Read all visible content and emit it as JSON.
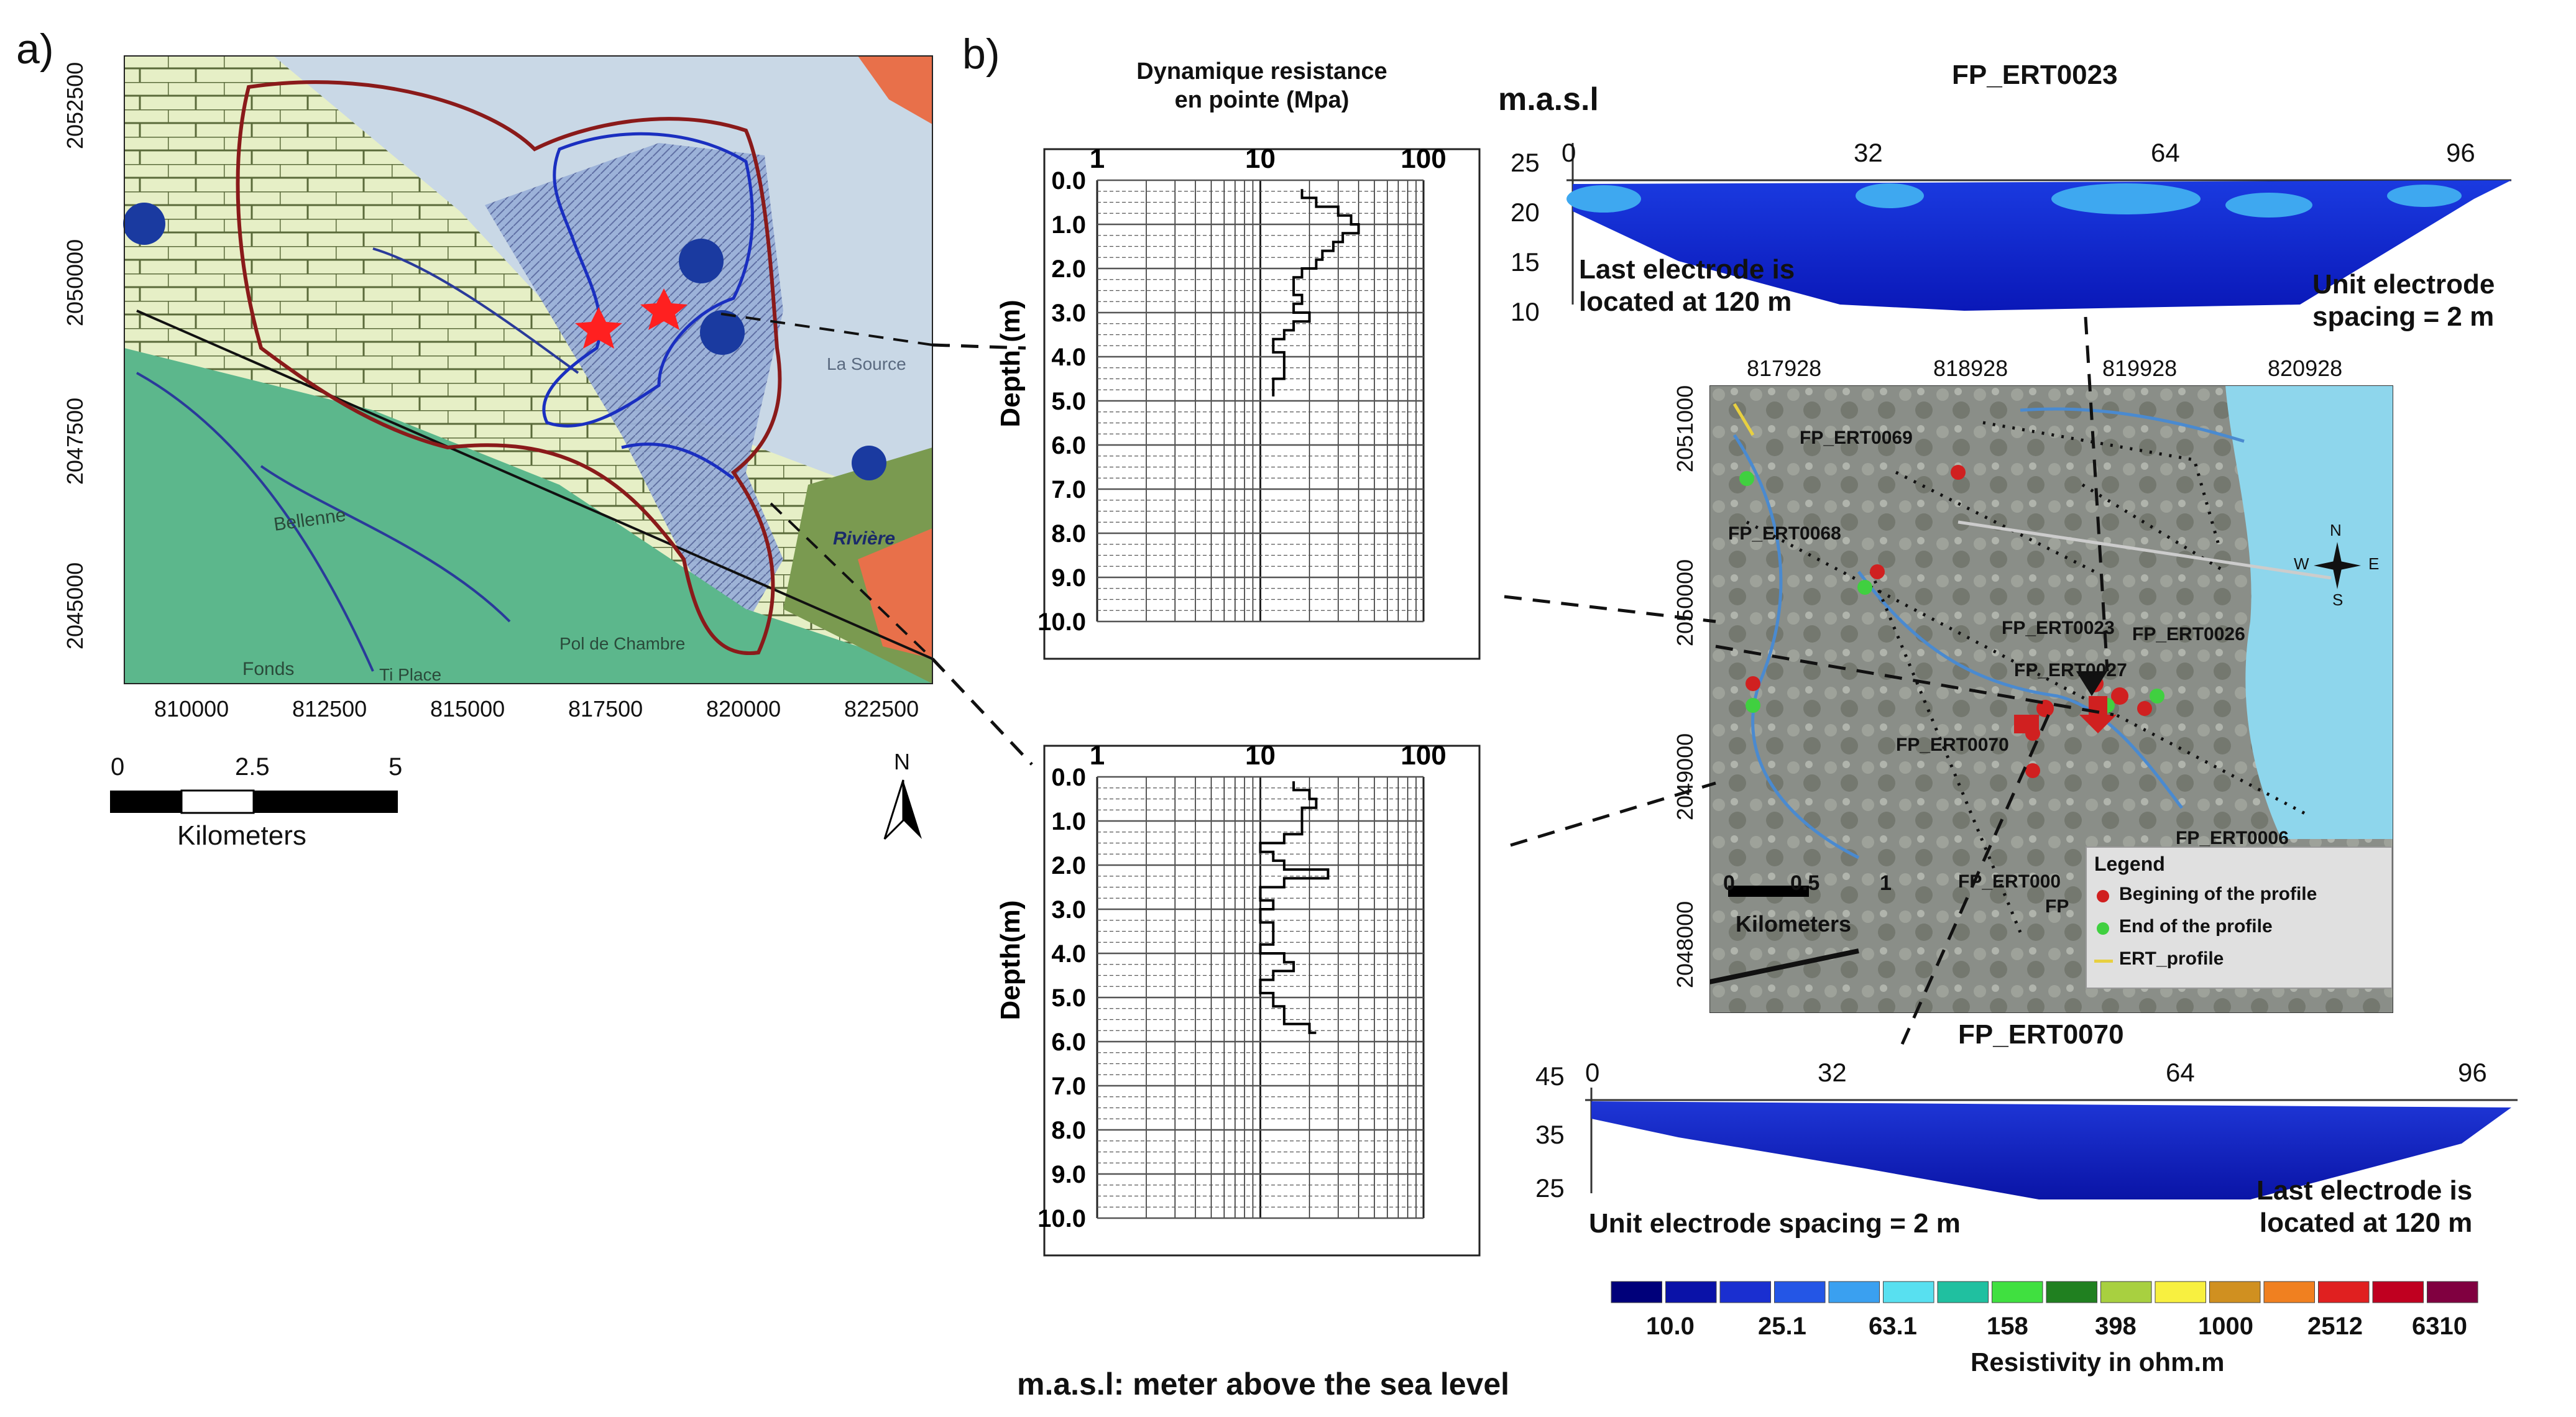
{
  "panel_a": {
    "label": "a)",
    "x_ticks": [
      "810000",
      "812500",
      "815000",
      "817500",
      "820000",
      "822500"
    ],
    "y_ticks": [
      "2052500",
      "2050000",
      "2047500",
      "2045000"
    ],
    "scale_bar": {
      "ticks": [
        "0",
        "2.5",
        "5"
      ],
      "unit": "Kilometers"
    },
    "north": "N",
    "map_words": [
      "Bellenne",
      "Fonds",
      "Pol de Chambre",
      "Ti Place",
      "La Source",
      "Rivière"
    ],
    "colors": {
      "limestone": "#e8f0c8",
      "sediment": "#b0c8dc",
      "volcanic": "#5bb58a",
      "basin_border": "#8a1a1a",
      "subbasin": "#1a2fc0",
      "marker": "#ff2020"
    }
  },
  "panel_b": {
    "label": "b)",
    "legend_masl": "m.a.s.l: meter above the sea level",
    "masl_label": "m.a.s.l",
    "penetrometer": {
      "title_line1": "Dynamique resistance",
      "title_line2": "en pointe (Mpa)",
      "x_ticks": [
        "1",
        "10",
        "100"
      ],
      "depth_ticks": [
        "0.0",
        "1.0",
        "2.0",
        "3.0",
        "4.0",
        "5.0",
        "6.0",
        "7.0",
        "8.0",
        "9.0",
        "10.0"
      ],
      "ylabel_top": "Depth (m)",
      "ylabel_bottom": "Depth(m)"
    },
    "ert_top": {
      "title": "FP_ERT0023",
      "x_ticks": [
        "0",
        "32",
        "64",
        "96"
      ],
      "y_ticks": [
        "25",
        "20",
        "15",
        "10"
      ],
      "note_left_1": "Last electrode is",
      "note_left_2": "located at 120 m",
      "note_right_1": "Unit electrode",
      "note_right_2": "spacing = 2 m"
    },
    "ert_bottom": {
      "title": "FP_ERT0070",
      "x_ticks": [
        "0",
        "32",
        "64",
        "96"
      ],
      "y_ticks": [
        "45",
        "35",
        "25"
      ],
      "note_left": "Unit electrode spacing = 2 m",
      "note_right_1": "Last electrode is",
      "note_right_2": "located at 120 m"
    },
    "site_map": {
      "x_ticks": [
        "817928",
        "818928",
        "819928",
        "820928"
      ],
      "y_ticks": [
        "2051000",
        "2050000",
        "2049000",
        "2048000"
      ],
      "profiles": [
        "FP_ERT0069",
        "FP_ERT0068",
        "FP_ERT0023",
        "FP_ERT0026",
        "FP_ERT0027",
        "FP_ERT0070",
        "FP_ERT0006",
        "FP_ERT000",
        "FP"
      ],
      "scale": {
        "ticks": [
          "0",
          "0.5",
          "1"
        ],
        "unit": "Kilometers"
      },
      "compass": {
        "n": "N",
        "s": "S",
        "e": "E",
        "w": "W"
      },
      "legend": {
        "title": "Legend",
        "items": [
          {
            "label": "Begining of the profile",
            "color": "#d02020"
          },
          {
            "label": "End of the profile",
            "color": "#40d040"
          },
          {
            "label": "ERT_profile",
            "color": "#e8d040"
          }
        ]
      }
    },
    "colorbar": {
      "title": "Resistivity in ohm.m",
      "tick_labels": [
        "10.0",
        "25.1",
        "63.1",
        "158",
        "398",
        "1000",
        "2512",
        "6310"
      ],
      "colors": [
        "#00007a",
        "#0a12a8",
        "#1a2fd0",
        "#2456e6",
        "#3aa0f0",
        "#58e0f0",
        "#20c0a0",
        "#40e040",
        "#208020",
        "#a8d040",
        "#f8f040",
        "#d09020",
        "#f08020",
        "#e02020",
        "#c00020",
        "#800040"
      ]
    }
  },
  "chart_data": {
    "type": "line",
    "title": "Dynamique resistance en pointe (Mpa)",
    "xlabel": "Dynamique resistance en pointe (Mpa)",
    "ylabel": "Depth (m)",
    "x_scale": "log",
    "xlim": [
      1,
      100
    ],
    "ylim": [
      0,
      10
    ],
    "series": [
      {
        "name": "top",
        "points": [
          [
            18,
            0.2
          ],
          [
            22,
            0.4
          ],
          [
            30,
            0.6
          ],
          [
            36,
            0.8
          ],
          [
            40,
            1.0
          ],
          [
            32,
            1.2
          ],
          [
            28,
            1.4
          ],
          [
            24,
            1.6
          ],
          [
            22,
            1.8
          ],
          [
            18,
            2.0
          ],
          [
            16,
            2.2
          ],
          [
            18,
            2.6
          ],
          [
            16,
            2.8
          ],
          [
            20,
            3.0
          ],
          [
            16,
            3.2
          ],
          [
            14,
            3.4
          ],
          [
            12,
            3.6
          ],
          [
            14,
            3.9
          ],
          [
            14,
            4.2
          ],
          [
            12,
            4.5
          ],
          [
            12,
            4.9
          ]
        ]
      },
      {
        "name": "bottom",
        "points": [
          [
            16,
            0.1
          ],
          [
            20,
            0.3
          ],
          [
            22,
            0.5
          ],
          [
            18,
            0.7
          ],
          [
            18,
            1.0
          ],
          [
            14,
            1.3
          ],
          [
            10,
            1.5
          ],
          [
            12,
            1.7
          ],
          [
            14,
            1.9
          ],
          [
            26,
            2.1
          ],
          [
            14,
            2.3
          ],
          [
            10,
            2.5
          ],
          [
            12,
            2.8
          ],
          [
            10,
            3.0
          ],
          [
            12,
            3.3
          ],
          [
            12,
            3.6
          ],
          [
            10,
            3.8
          ],
          [
            14,
            4.0
          ],
          [
            16,
            4.2
          ],
          [
            12,
            4.4
          ],
          [
            10,
            4.6
          ],
          [
            12,
            4.9
          ],
          [
            14,
            5.2
          ],
          [
            20,
            5.6
          ],
          [
            22,
            5.8
          ]
        ]
      }
    ]
  }
}
